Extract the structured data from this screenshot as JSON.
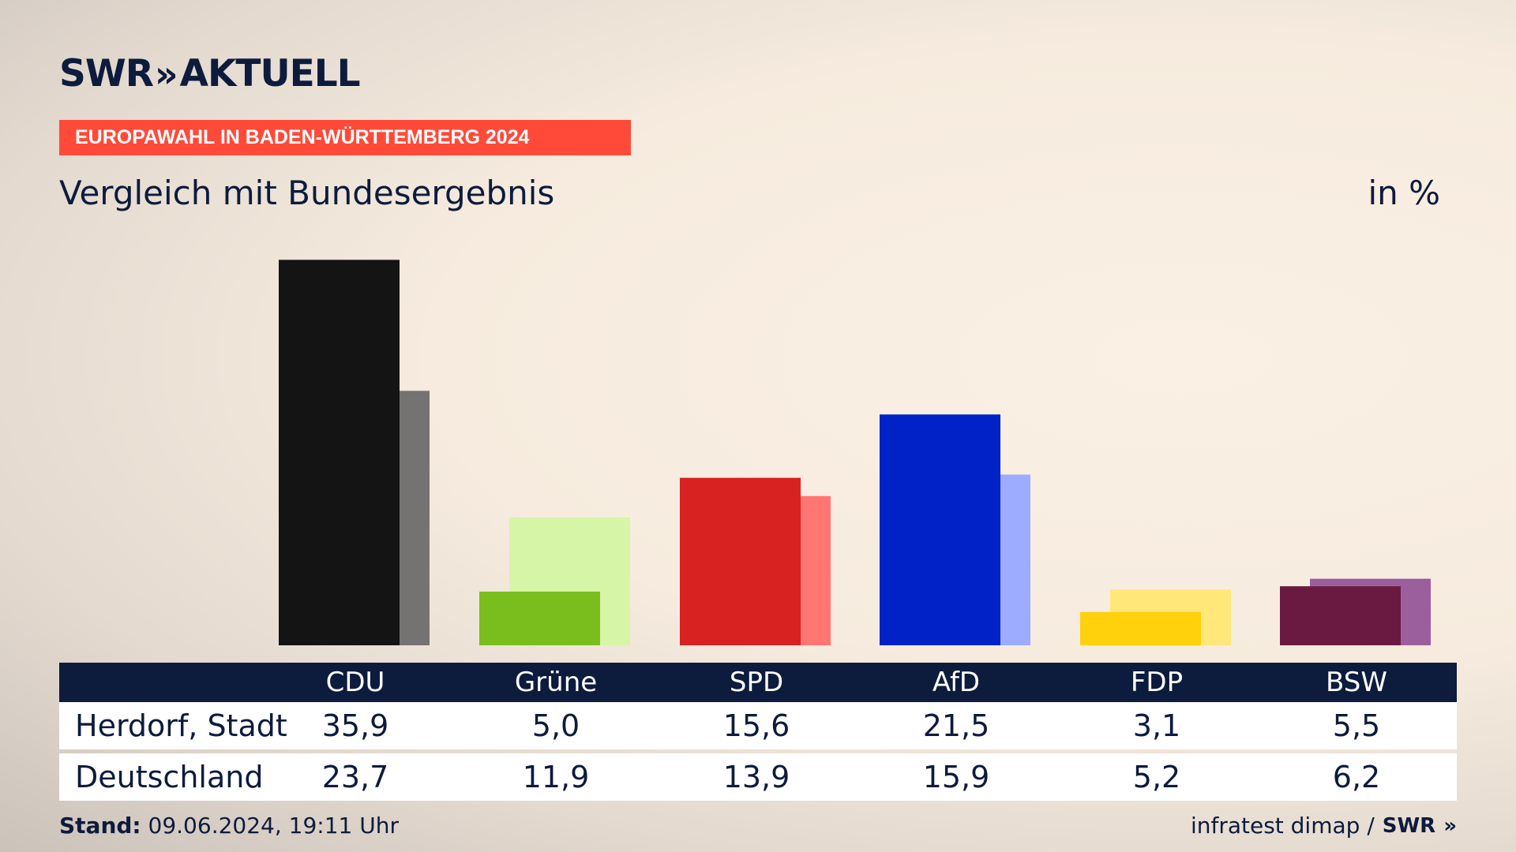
{
  "brand": {
    "logo_text": "SWR",
    "logo_chevrons": "»",
    "logo_suffix": "AKTUELL"
  },
  "kicker": "EUROPAWAHL IN BADEN-WÜRTTEMBERG 2024",
  "subtitle": "Vergleich mit Bundesergebnis",
  "unit": "in %",
  "chart_data": {
    "type": "bar",
    "categories": [
      "CDU",
      "Grüne",
      "SPD",
      "AfD",
      "FDP",
      "BSW"
    ],
    "series": [
      {
        "name": "Herdorf, Stadt",
        "values": [
          35.9,
          5.0,
          15.6,
          21.5,
          3.1,
          5.5
        ],
        "colors": [
          "#141414",
          "#79be1d",
          "#d82121",
          "#0022c7",
          "#ffd00c",
          "#6a1a41"
        ]
      },
      {
        "name": "Deutschland",
        "values": [
          23.7,
          11.9,
          13.9,
          15.9,
          5.2,
          6.2
        ],
        "colors": [
          "#747372",
          "#d6f5a6",
          "#ff7672",
          "#9eacff",
          "#ffe77a",
          "#9b5f9d"
        ]
      }
    ],
    "ylim": [
      0,
      36
    ]
  },
  "table": {
    "headers": [
      "CDU",
      "Grüne",
      "SPD",
      "AfD",
      "FDP",
      "BSW"
    ],
    "rows": [
      {
        "label": "Herdorf, Stadt",
        "values": [
          "35,9",
          "5,0",
          "15,6",
          "21,5",
          "3,1",
          "5,5"
        ]
      },
      {
        "label": "Deutschland",
        "values": [
          "23,7",
          "11,9",
          "13,9",
          "15,9",
          "5,2",
          "6,2"
        ]
      }
    ]
  },
  "footer": {
    "stand_label": "Stand:",
    "stand_value": "09.06.2024, 19:11 Uhr",
    "source": "infratest dimap /",
    "source_brand": "SWR",
    "source_chevrons": "»"
  }
}
